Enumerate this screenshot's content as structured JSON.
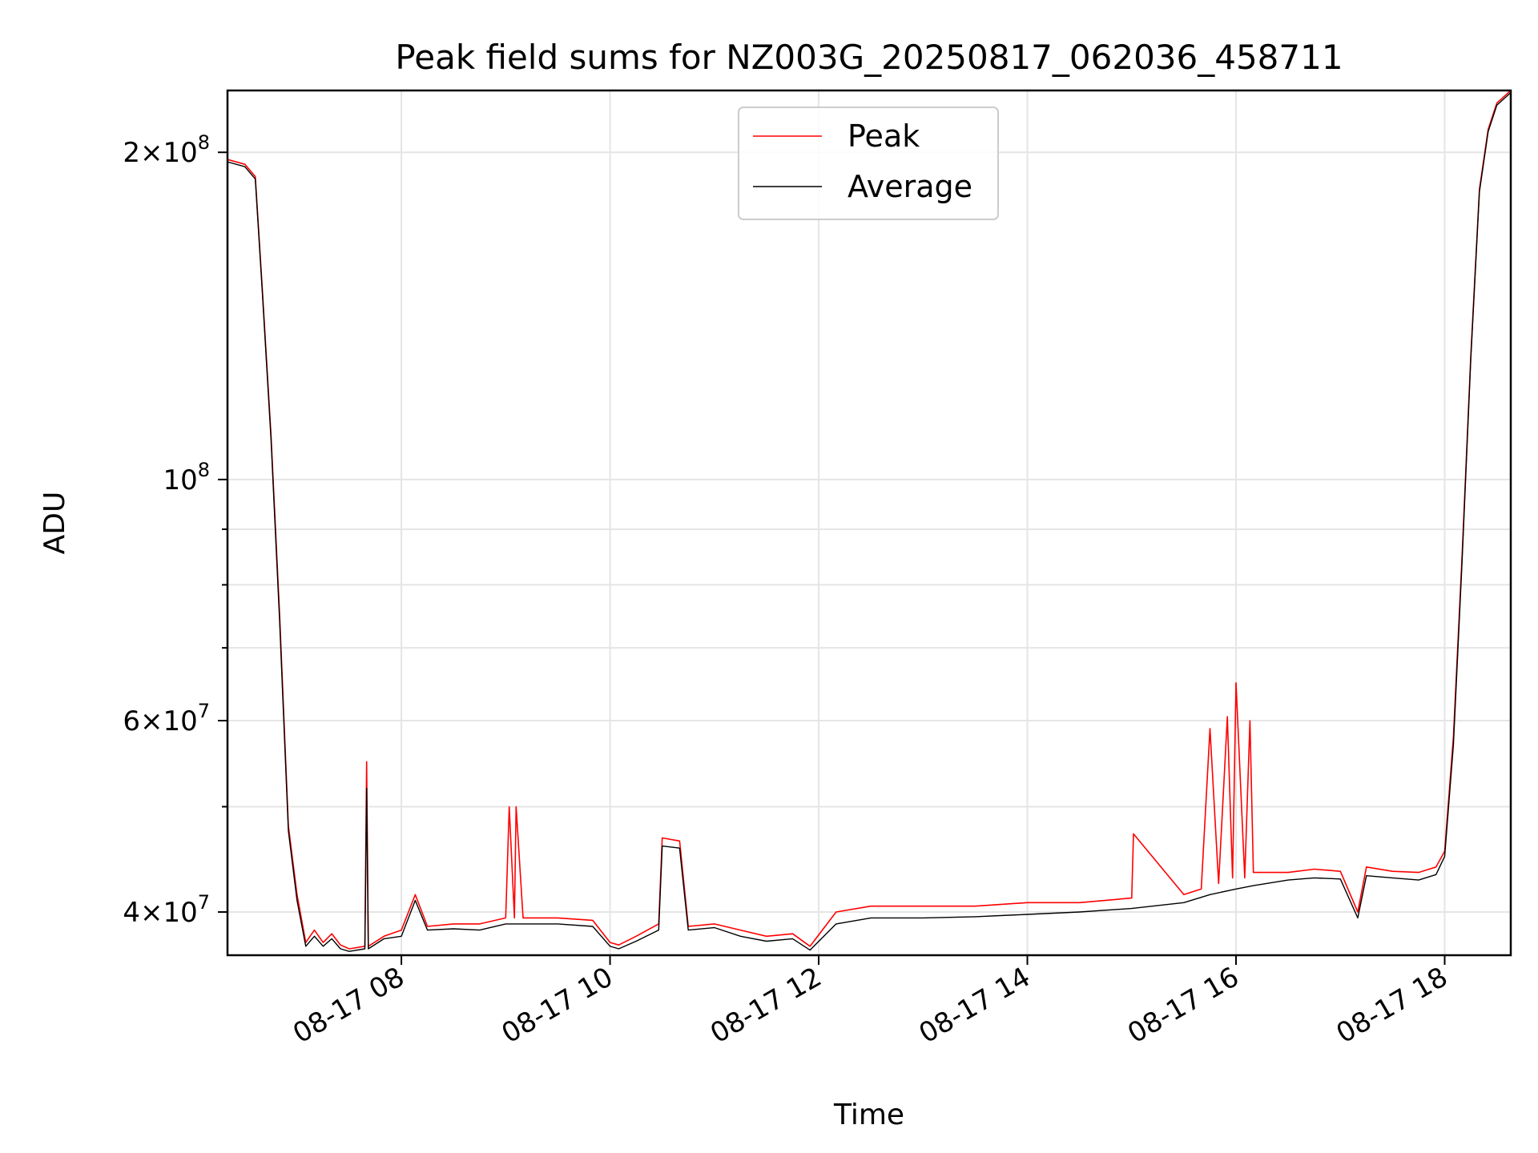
{
  "chart_data": {
    "type": "line",
    "title": "Peak field sums for NZ003G_20250817_062036_458711",
    "xlabel": "Time",
    "ylabel": "ADU",
    "yscale": "log",
    "xlim": [
      "08-17 06:20",
      "08-17 18:38"
    ],
    "ylim": [
      36500000,
      228000000
    ],
    "grid": true,
    "legend_position": "top-center",
    "x_ticks": [
      {
        "value": "08-17 08:00",
        "label": "08-17 08"
      },
      {
        "value": "08-17 10:00",
        "label": "08-17 10"
      },
      {
        "value": "08-17 12:00",
        "label": "08-17 12"
      },
      {
        "value": "08-17 14:00",
        "label": "08-17 14"
      },
      {
        "value": "08-17 16:00",
        "label": "08-17 16"
      },
      {
        "value": "08-17 18:00",
        "label": "08-17 18"
      }
    ],
    "y_major_ticks": [
      {
        "value": 40000000,
        "mantissa": "4",
        "exponent": "7"
      },
      {
        "value": 60000000,
        "mantissa": "6",
        "exponent": "7"
      },
      {
        "value": 100000000,
        "mantissa": "",
        "exponent": "8"
      },
      {
        "value": 200000000,
        "mantissa": "2",
        "exponent": "8"
      }
    ],
    "y_minor_ticks": [
      50000000,
      70000000,
      80000000,
      90000000
    ],
    "series": [
      {
        "name": "Peak",
        "color": "#ff0000",
        "x": [
          "08-17 06:20",
          "08-17 06:30",
          "08-17 06:36",
          "08-17 06:40",
          "08-17 06:45",
          "08-17 06:50",
          "08-17 06:55",
          "08-17 07:00",
          "08-17 07:05",
          "08-17 07:10",
          "08-17 07:15",
          "08-17 07:20",
          "08-17 07:25",
          "08-17 07:30",
          "08-17 07:39",
          "08-17 07:40",
          "08-17 07:41",
          "08-17 07:50",
          "08-17 08:00",
          "08-17 08:08",
          "08-17 08:15",
          "08-17 08:30",
          "08-17 08:45",
          "08-17 09:00",
          "08-17 09:02",
          "08-17 09:05",
          "08-17 09:06",
          "08-17 09:10",
          "08-17 09:30",
          "08-17 09:50",
          "08-17 10:00",
          "08-17 10:05",
          "08-17 10:15",
          "08-17 10:28",
          "08-17 10:30",
          "08-17 10:40",
          "08-17 10:45",
          "08-17 11:00",
          "08-17 11:15",
          "08-17 11:30",
          "08-17 11:45",
          "08-17 11:55",
          "08-17 12:10",
          "08-17 12:30",
          "08-17 13:00",
          "08-17 13:30",
          "08-17 14:00",
          "08-17 14:30",
          "08-17 15:00",
          "08-17 15:01",
          "08-17 15:30",
          "08-17 15:40",
          "08-17 15:45",
          "08-17 15:50",
          "08-17 15:55",
          "08-17 15:58",
          "08-17 16:00",
          "08-17 16:05",
          "08-17 16:08",
          "08-17 16:10",
          "08-17 16:30",
          "08-17 16:45",
          "08-17 17:00",
          "08-17 17:10",
          "08-17 17:15",
          "08-17 17:30",
          "08-17 17:45",
          "08-17 17:55",
          "08-17 18:00",
          "08-17 18:05",
          "08-17 18:10",
          "08-17 18:15",
          "08-17 18:20",
          "08-17 18:25",
          "08-17 18:30",
          "08-17 18:38"
        ],
        "values": [
          197000000,
          195000000,
          190000000,
          150000000,
          110000000,
          75000000,
          48000000,
          41500000,
          37500000,
          38500000,
          37500000,
          38200000,
          37300000,
          37000000,
          37200000,
          55000000,
          37200000,
          38000000,
          38500000,
          41500000,
          38800000,
          39000000,
          39000000,
          39500000,
          50000000,
          39500000,
          50000000,
          39500000,
          39500000,
          39300000,
          37500000,
          37300000,
          38000000,
          39000000,
          46800000,
          46500000,
          38800000,
          39000000,
          38500000,
          38000000,
          38200000,
          37200000,
          40000000,
          40500000,
          40500000,
          40500000,
          40800000,
          40800000,
          41200000,
          47200000,
          41500000,
          42000000,
          59000000,
          42500000,
          60500000,
          43000000,
          65000000,
          43000000,
          60000000,
          43500000,
          43500000,
          43800000,
          43600000,
          40000000,
          44000000,
          43600000,
          43500000,
          44000000,
          45500000,
          58000000,
          85000000,
          130000000,
          185000000,
          210000000,
          222000000,
          228000000
        ]
      },
      {
        "name": "Average",
        "color": "#000000",
        "x": [
          "08-17 06:20",
          "08-17 06:30",
          "08-17 06:36",
          "08-17 06:40",
          "08-17 06:45",
          "08-17 06:50",
          "08-17 06:55",
          "08-17 07:00",
          "08-17 07:05",
          "08-17 07:10",
          "08-17 07:15",
          "08-17 07:20",
          "08-17 07:25",
          "08-17 07:30",
          "08-17 07:39",
          "08-17 07:40",
          "08-17 07:41",
          "08-17 07:50",
          "08-17 08:00",
          "08-17 08:08",
          "08-17 08:15",
          "08-17 08:30",
          "08-17 08:45",
          "08-17 09:00",
          "08-17 09:10",
          "08-17 09:30",
          "08-17 09:50",
          "08-17 10:00",
          "08-17 10:05",
          "08-17 10:15",
          "08-17 10:28",
          "08-17 10:30",
          "08-17 10:40",
          "08-17 10:45",
          "08-17 11:00",
          "08-17 11:15",
          "08-17 11:30",
          "08-17 11:45",
          "08-17 11:55",
          "08-17 12:10",
          "08-17 12:30",
          "08-17 13:00",
          "08-17 13:30",
          "08-17 14:00",
          "08-17 14:30",
          "08-17 15:00",
          "08-17 15:30",
          "08-17 15:45",
          "08-17 16:00",
          "08-17 16:10",
          "08-17 16:30",
          "08-17 16:45",
          "08-17 17:00",
          "08-17 17:10",
          "08-17 17:15",
          "08-17 17:30",
          "08-17 17:45",
          "08-17 17:55",
          "08-17 18:00",
          "08-17 18:05",
          "08-17 18:10",
          "08-17 18:15",
          "08-17 18:20",
          "08-17 18:25",
          "08-17 18:30",
          "08-17 18:38"
        ],
        "values": [
          196000000,
          194000000,
          189000000,
          149000000,
          109000000,
          74000000,
          47500000,
          41000000,
          37200000,
          38000000,
          37200000,
          37800000,
          37000000,
          36800000,
          37000000,
          52000000,
          37000000,
          37800000,
          38000000,
          41000000,
          38500000,
          38600000,
          38500000,
          39000000,
          39000000,
          39000000,
          38800000,
          37200000,
          37000000,
          37600000,
          38500000,
          46000000,
          45800000,
          38500000,
          38700000,
          38000000,
          37600000,
          37800000,
          36900000,
          39000000,
          39500000,
          39500000,
          39600000,
          39800000,
          40000000,
          40300000,
          40800000,
          41500000,
          42000000,
          42300000,
          42800000,
          43000000,
          42900000,
          39500000,
          43200000,
          43000000,
          42800000,
          43300000,
          45000000,
          57000000,
          84000000,
          129000000,
          184000000,
          209000000,
          221000000,
          227000000
        ]
      }
    ]
  }
}
